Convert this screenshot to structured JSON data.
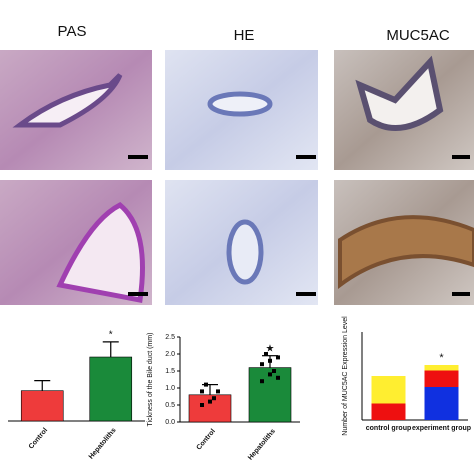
{
  "panels": [
    "PAS",
    "HE",
    "MUC5AC"
  ],
  "chart_data": [
    {
      "type": "bar",
      "categories": [
        "Control",
        "Hepatoliths"
      ],
      "values": [
        0.9,
        1.9
      ],
      "errors": [
        0.3,
        0.45
      ],
      "colors": [
        "#ee3b3b",
        "#1a8a3a"
      ],
      "annotation": "*"
    },
    {
      "type": "bar",
      "ylabel": "Tickness of the Bile duct (mm)",
      "categories": [
        "Control",
        "Hepatoliths"
      ],
      "values": [
        0.8,
        1.6
      ],
      "errors": [
        0.3,
        0.35
      ],
      "colors": [
        "#ee3b3b",
        "#1a8a3a"
      ],
      "points": [
        [
          0.5,
          0.6,
          0.9,
          1.1,
          0.7,
          0.9
        ],
        [
          1.2,
          1.4,
          1.9,
          2.0,
          1.5,
          1.7,
          1.8,
          1.3
        ]
      ],
      "ylim": [
        0,
        2.5
      ],
      "yticks": [
        {
          "value": 0,
          "label": "0.0"
        },
        {
          "value": 0.5,
          "label": "0.5"
        },
        {
          "value": 1,
          "label": "1.0"
        },
        {
          "value": 1.5,
          "label": "1.5"
        },
        {
          "value": 2,
          "label": "2.0"
        },
        {
          "value": 2.5,
          "label": "2.5"
        }
      ],
      "annotation": "★"
    },
    {
      "type": "stacked-bar",
      "ylabel": "Number of MUC5AC Expression Level",
      "categories": [
        "control group",
        "experiment group"
      ],
      "series": [
        {
          "name": "blue",
          "color": "#1030e0",
          "values": [
            0,
            6
          ]
        },
        {
          "name": "red",
          "color": "#ee1010",
          "values": [
            3,
            3
          ]
        },
        {
          "name": "yellow",
          "color": "#ffee30",
          "values": [
            5,
            1
          ]
        }
      ],
      "annotation": "*"
    }
  ]
}
